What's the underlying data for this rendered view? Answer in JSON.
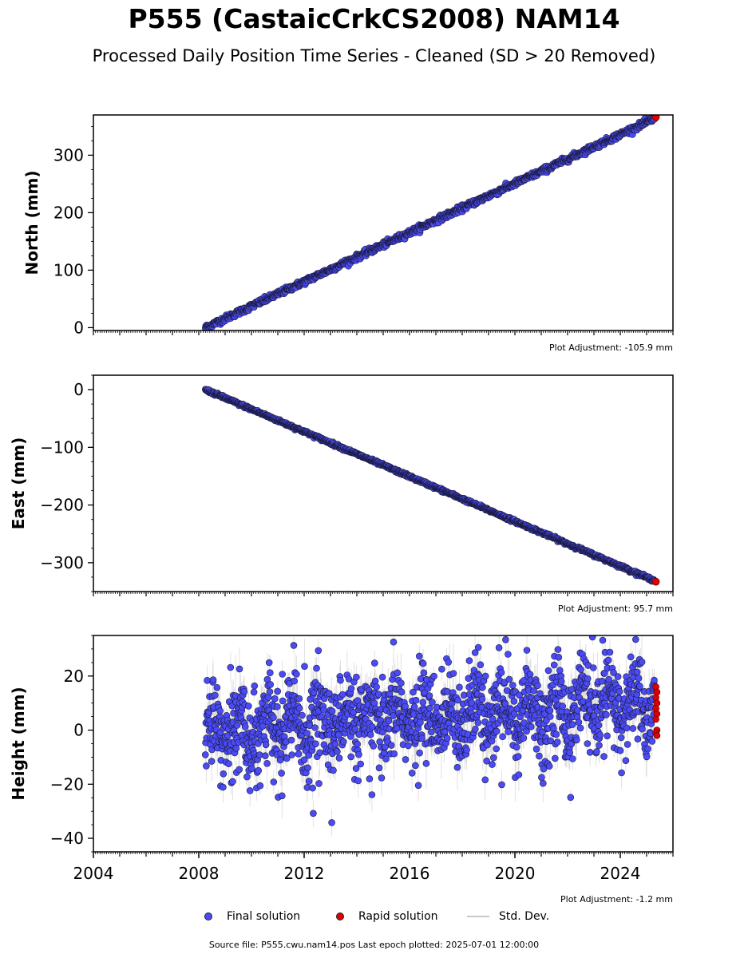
{
  "title": "P555 (CastaicCrkCS2008) NAM14",
  "subtitle": "Processed Daily Position Time Series - Cleaned (SD > 20 Removed)",
  "legend": {
    "final": "Final solution",
    "rapid": "Rapid solution",
    "std": "Std. Dev."
  },
  "source_note": "Source file: P555.cwu.nam14.pos  Last epoch plotted: 2025-07-01 12:00:00",
  "colors": {
    "final": "#4b4bf5",
    "rapid": "#e00000",
    "std": "#c8c8c8"
  },
  "chart_data": [
    {
      "type": "scatter",
      "ylabel": "North (mm)",
      "xlim": [
        2004,
        2026
      ],
      "ylim": [
        -5,
        370
      ],
      "yticks": [
        0,
        100,
        200,
        300
      ],
      "ytick_labels": [
        "0",
        "100",
        "200",
        "300"
      ],
      "adjustment": "Plot Adjustment: -105.9 mm",
      "trend": {
        "start": [
          2008.25,
          0
        ],
        "end": [
          2025.4,
          366
        ]
      },
      "noise_sd": 2.5,
      "rapid_value": 366
    },
    {
      "type": "scatter",
      "ylabel": "East (mm)",
      "xlim": [
        2004,
        2026
      ],
      "ylim": [
        -350,
        25
      ],
      "yticks": [
        -300,
        -200,
        -100,
        0
      ],
      "ytick_labels": [
        "−300",
        "−200",
        "−100",
        "0"
      ],
      "adjustment": "Plot Adjustment: 95.7 mm",
      "trend": {
        "start": [
          2008.25,
          0
        ],
        "end": [
          2025.4,
          -333
        ]
      },
      "noise_sd": 1.3,
      "rapid_value": -333
    },
    {
      "type": "scatter",
      "ylabel": "Height (mm)",
      "xlim": [
        2004,
        2026
      ],
      "ylim": [
        -45,
        35
      ],
      "yticks": [
        -40,
        -20,
        0,
        20
      ],
      "ytick_labels": [
        "−40",
        "−20",
        "0",
        "20"
      ],
      "xticks": [
        2004,
        2008,
        2012,
        2016,
        2020,
        2024
      ],
      "xtick_labels": [
        "2004",
        "2008",
        "2012",
        "2016",
        "2020",
        "2024"
      ],
      "adjustment": "Plot Adjustment: -1.2 mm",
      "trend": {
        "start": [
          2008.25,
          0
        ],
        "end": [
          2025.4,
          10
        ]
      },
      "noise_sd": 8,
      "seasonal_amplitude": 6,
      "rapid_values": [
        16,
        14,
        12,
        10,
        8,
        6,
        4,
        0,
        -1,
        -2
      ]
    }
  ]
}
